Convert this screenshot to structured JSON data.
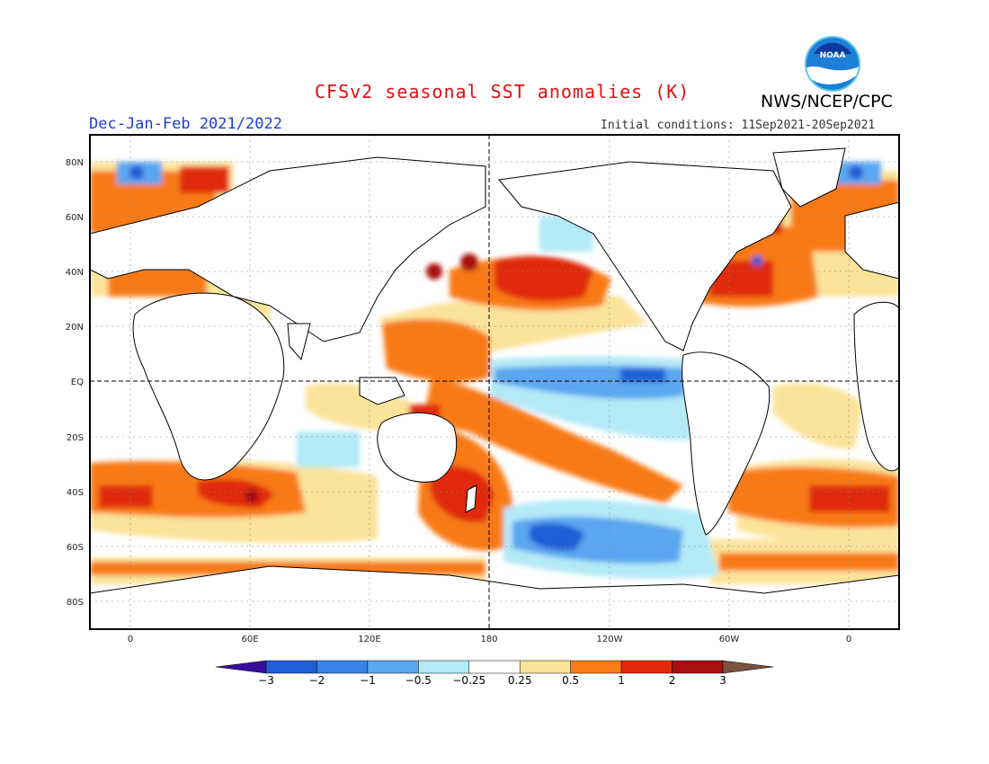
{
  "title": "CFSv2 seasonal SST anomalies (K)",
  "agency": "NWS/NCEP/CPC",
  "logo_text": "NOAA",
  "season": "Dec-Jan-Feb 2021/2022",
  "initial_conditions": "Initial conditions: 11Sep2021-20Sep2021",
  "lat_labels": [
    "80N",
    "60N",
    "40N",
    "20N",
    "EQ",
    "20S",
    "40S",
    "60S",
    "80S"
  ],
  "lon_labels": [
    "0",
    "60E",
    "120E",
    "180",
    "120W",
    "60W",
    "0"
  ],
  "colorbar": {
    "labels": [
      "-3",
      "-2",
      "-1",
      "-0.5",
      "-0.25",
      "0.25",
      "0.5",
      "1",
      "2",
      "3"
    ],
    "colors": [
      "#3a0c9c",
      "#1f5fd6",
      "#3a82e8",
      "#5aa6f0",
      "#b4eaf6",
      "#ffffff",
      "#fbe39a",
      "#f87a18",
      "#e02a10",
      "#a81010",
      "#7a5040"
    ]
  },
  "colors": {
    "land_outline": "#000000",
    "frame": "#000000"
  }
}
